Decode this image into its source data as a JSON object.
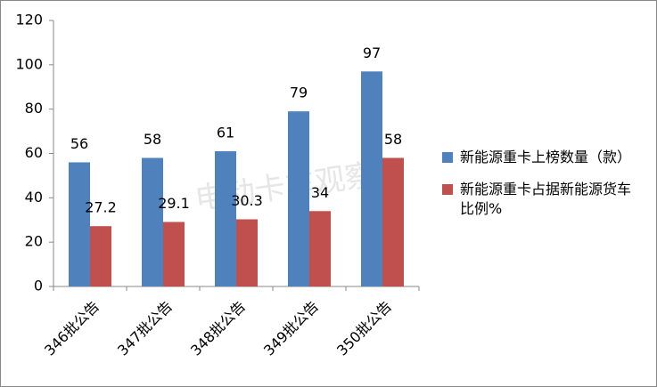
{
  "chart_data": {
    "type": "bar",
    "categories": [
      "346批公告",
      "347批公告",
      "348批公告",
      "349批公告",
      "350批公告"
    ],
    "series": [
      {
        "name": "新能源重卡上榜数量（款）",
        "color": "#4f81bd",
        "values": [
          56,
          58,
          61,
          79,
          97
        ]
      },
      {
        "name": "新能源重卡占据新能源货车比例%",
        "color": "#c0504d",
        "values": [
          27.2,
          29.1,
          30.3,
          34,
          58
        ]
      }
    ],
    "ylim": [
      0,
      120
    ],
    "yticks": [
      0,
      20,
      40,
      60,
      80,
      100,
      120
    ],
    "grid": false,
    "legend": "right",
    "watermark": "电动卡车观察"
  }
}
